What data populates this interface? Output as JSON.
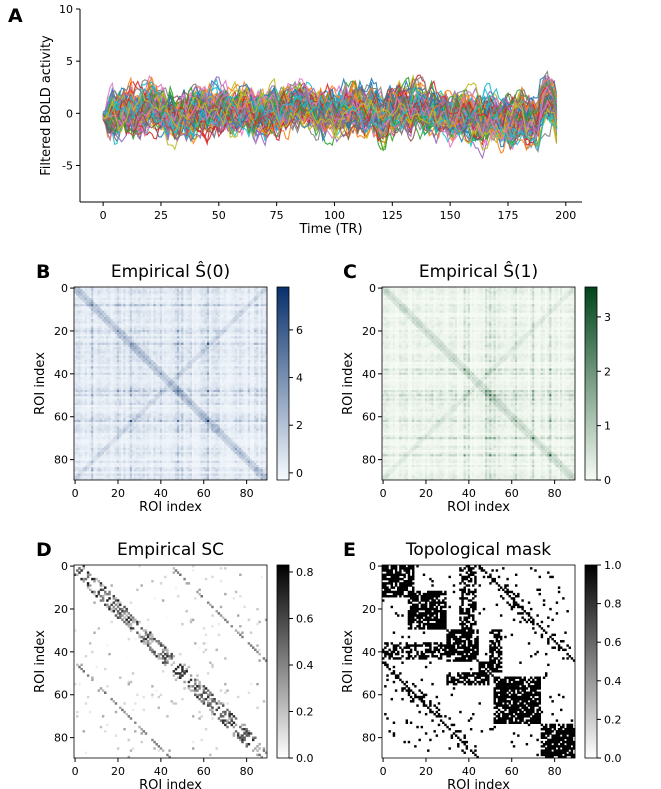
{
  "panels": {
    "A": {
      "letter": "A"
    },
    "B": {
      "letter": "B"
    },
    "C": {
      "letter": "C"
    },
    "D": {
      "letter": "D"
    },
    "E": {
      "letter": "E"
    }
  },
  "colors": {
    "blues_low": "#f7fbff",
    "blues_high": "#08306b",
    "greens_low": "#f7fcf5",
    "greens_high": "#00441b",
    "greys_low": "#ffffff",
    "greys_high": "#000000",
    "series_palette": [
      "#1f77b4",
      "#ff7f0e",
      "#2ca02c",
      "#d62728",
      "#9467bd",
      "#8c564b",
      "#e377c2",
      "#7f7f7f",
      "#bcbd22",
      "#17becf"
    ]
  },
  "chart_data": [
    {
      "id": "A",
      "type": "line",
      "title": "",
      "xlabel": "Time (TR)",
      "ylabel": "Filtered BOLD activity",
      "xlim": [
        -10,
        207
      ],
      "ylim": [
        -8.5,
        10
      ],
      "xticks": [
        0,
        25,
        50,
        75,
        100,
        125,
        150,
        175,
        200
      ],
      "yticks": [
        -5,
        0,
        5,
        10
      ],
      "n_series": 90,
      "n_timepoints": 197,
      "grid": false,
      "legend": "none"
    },
    {
      "id": "B",
      "type": "heatmap",
      "title": "Empirical Ŝ(0)",
      "xlabel": "ROI index",
      "ylabel": "ROI index",
      "size": 90,
      "xticks": [
        0,
        20,
        40,
        60,
        80
      ],
      "yticks": [
        0,
        20,
        40,
        60,
        80
      ],
      "colormap": "Blues",
      "colorbar_range": [
        -0.3,
        7.8
      ],
      "colorbar_ticks": [
        0,
        2,
        4,
        6
      ]
    },
    {
      "id": "C",
      "type": "heatmap",
      "title": "Empirical Ŝ(1)",
      "xlabel": "ROI index",
      "ylabel": "ROI index",
      "size": 90,
      "xticks": [
        0,
        20,
        40,
        60,
        80
      ],
      "yticks": [
        0,
        20,
        40,
        60,
        80
      ],
      "colormap": "Greens",
      "colorbar_range": [
        0,
        3.55
      ],
      "colorbar_ticks": [
        0,
        1,
        2,
        3
      ]
    },
    {
      "id": "D",
      "type": "heatmap",
      "title": "Empirical SC",
      "xlabel": "ROI index",
      "ylabel": "ROI index",
      "size": 90,
      "xticks": [
        0,
        20,
        40,
        60,
        80
      ],
      "yticks": [
        0,
        20,
        40,
        60,
        80
      ],
      "colormap": "Greys",
      "colorbar_range": [
        0,
        0.83
      ],
      "colorbar_ticks": [
        "0.0",
        "0.2",
        "0.4",
        "0.6",
        "0.8"
      ]
    },
    {
      "id": "E",
      "type": "heatmap",
      "title": "Topological mask",
      "xlabel": "ROI index",
      "ylabel": "ROI index",
      "size": 90,
      "xticks": [
        0,
        20,
        40,
        60,
        80
      ],
      "yticks": [
        0,
        20,
        40,
        60,
        80
      ],
      "colormap": "Greys",
      "colorbar_range": [
        0,
        1
      ],
      "colorbar_ticks": [
        "0.0",
        "0.2",
        "0.4",
        "0.6",
        "0.8",
        "1.0"
      ]
    }
  ]
}
